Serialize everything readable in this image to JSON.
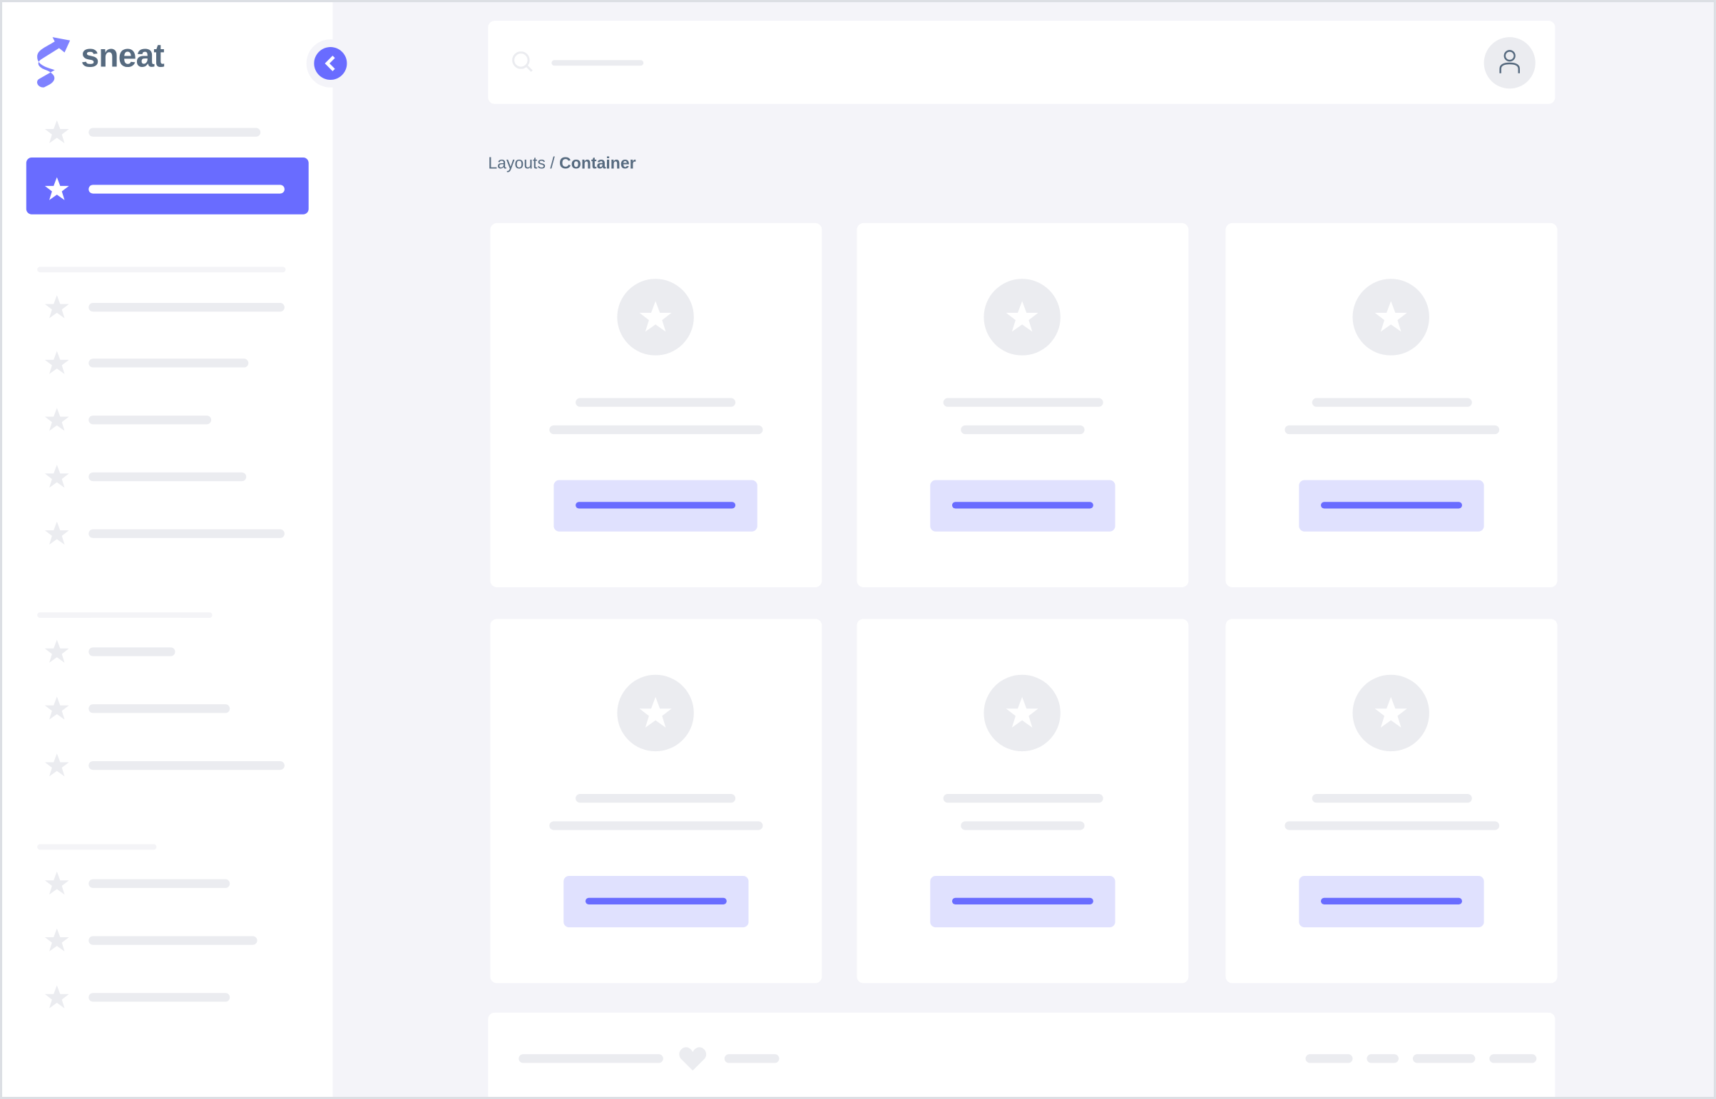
{
  "brand": {
    "name": "sneat",
    "color": "#696cff"
  },
  "breadcrumb": {
    "parent": "Layouts",
    "separator": " / ",
    "current": "Container"
  },
  "icons": {
    "logo": "sneat-logo-icon",
    "collapse": "chevron-left-icon",
    "search": "search-icon",
    "user": "user-icon",
    "nav": "star-icon",
    "footer": "heart-icon"
  },
  "colors": {
    "accent": "#696cff",
    "accent_light": "#e0e1fe",
    "skeleton": "#ebecf0",
    "background": "#f4f4f9",
    "text": "#566a7f"
  }
}
